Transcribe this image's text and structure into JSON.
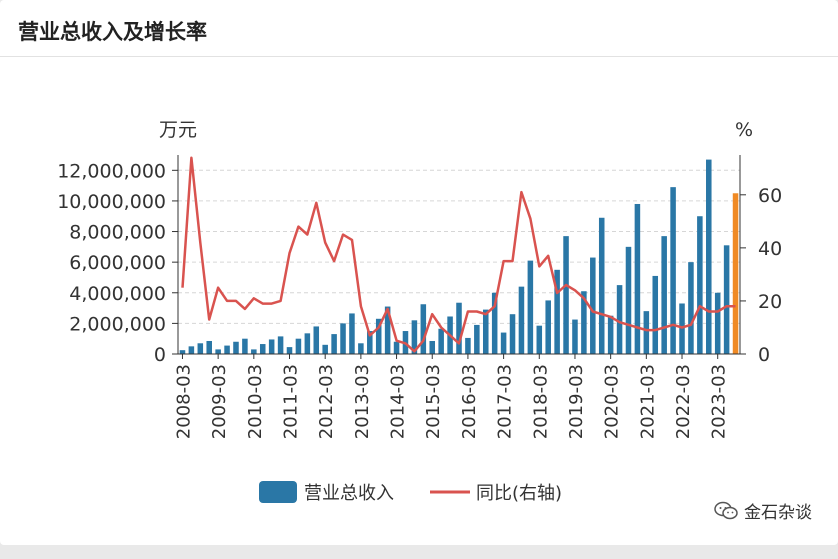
{
  "header": {
    "title": "营业总收入及增长率"
  },
  "watermark": {
    "text": "金石杂谈",
    "icon": "wechat-icon"
  },
  "chart_data": {
    "type": "bar",
    "left_unit": "万元",
    "right_unit": "%",
    "left_ylim": [
      0,
      13000000
    ],
    "left_ticks": [
      0,
      2000000,
      4000000,
      6000000,
      8000000,
      10000000,
      12000000
    ],
    "left_tick_labels": [
      "0",
      "2,000,000",
      "4,000,000",
      "6,000,000",
      "8,000,000",
      "10,000,000",
      "12,000,000"
    ],
    "right_ylim": [
      0,
      75
    ],
    "right_ticks": [
      0,
      20,
      40,
      60
    ],
    "right_tick_labels": [
      "0",
      "20",
      "40",
      "60"
    ],
    "x_tick_labels": [
      "2008-03",
      "2009-03",
      "2010-03",
      "2011-03",
      "2012-03",
      "2013-03",
      "2014-03",
      "2015-03",
      "2016-03",
      "2017-03",
      "2018-03",
      "2019-03",
      "2020-03",
      "2021-03",
      "2022-03",
      "2023-03"
    ],
    "grid": true,
    "legend": {
      "position": "bottom",
      "bar_label": "营业总收入",
      "line_label": "同比(右轴)"
    },
    "colors": {
      "bar": "#2a77a6",
      "line": "#d9534f",
      "highlight": "#f08a24"
    },
    "categories": [
      "2008-03",
      "2008-06",
      "2008-09",
      "2008-12",
      "2009-03",
      "2009-06",
      "2009-09",
      "2009-12",
      "2010-03",
      "2010-06",
      "2010-09",
      "2010-12",
      "2011-03",
      "2011-06",
      "2011-09",
      "2011-12",
      "2012-03",
      "2012-06",
      "2012-09",
      "2012-12",
      "2013-03",
      "2013-06",
      "2013-09",
      "2013-12",
      "2014-03",
      "2014-06",
      "2014-09",
      "2014-12",
      "2015-03",
      "2015-06",
      "2015-09",
      "2015-12",
      "2016-03",
      "2016-06",
      "2016-09",
      "2016-12",
      "2017-03",
      "2017-06",
      "2017-09",
      "2017-12",
      "2018-03",
      "2018-06",
      "2018-09",
      "2018-12",
      "2019-03",
      "2019-06",
      "2019-09",
      "2019-12",
      "2020-03",
      "2020-06",
      "2020-09",
      "2020-12",
      "2021-03",
      "2021-06",
      "2021-09",
      "2021-12",
      "2022-03",
      "2022-06",
      "2022-09",
      "2022-12",
      "2023-03",
      "2023-06",
      "2023-09"
    ],
    "series": [
      {
        "name": "营业总收入",
        "kind": "bar",
        "axis": "left",
        "values": [
          250000,
          500000,
          700000,
          850000,
          300000,
          550000,
          800000,
          1000000,
          300000,
          650000,
          950000,
          1150000,
          450000,
          1000000,
          1350000,
          1800000,
          600000,
          1300000,
          2000000,
          2650000,
          700000,
          1500000,
          2300000,
          3100000,
          800000,
          1500000,
          2200000,
          3250000,
          850000,
          1650000,
          2450000,
          3350000,
          1050000,
          1900000,
          2900000,
          4000000,
          1400000,
          2600000,
          4400000,
          6100000,
          1850000,
          3500000,
          5500000,
          7700000,
          2250000,
          4100000,
          6300000,
          8900000,
          2500000,
          4500000,
          7000000,
          9800000,
          2800000,
          5100000,
          7700000,
          10900000,
          3300000,
          6000000,
          9000000,
          12700000,
          4000000,
          7100000,
          10500000
        ]
      },
      {
        "name": "同比(右轴)",
        "kind": "line",
        "axis": "right",
        "values": [
          25,
          74,
          42,
          13,
          25,
          20,
          20,
          17,
          21,
          19,
          19,
          20,
          38,
          48,
          45,
          57,
          42,
          35,
          45,
          43,
          18,
          7,
          10,
          17,
          5,
          4,
          1,
          5,
          15,
          10,
          7,
          4,
          16,
          16,
          15,
          18,
          35,
          35,
          61,
          51,
          33,
          37,
          23,
          26,
          24,
          21,
          16,
          15,
          14,
          12,
          11,
          10,
          9,
          9,
          10,
          11,
          10,
          11,
          18,
          16,
          16,
          18,
          18
        ]
      }
    ]
  }
}
